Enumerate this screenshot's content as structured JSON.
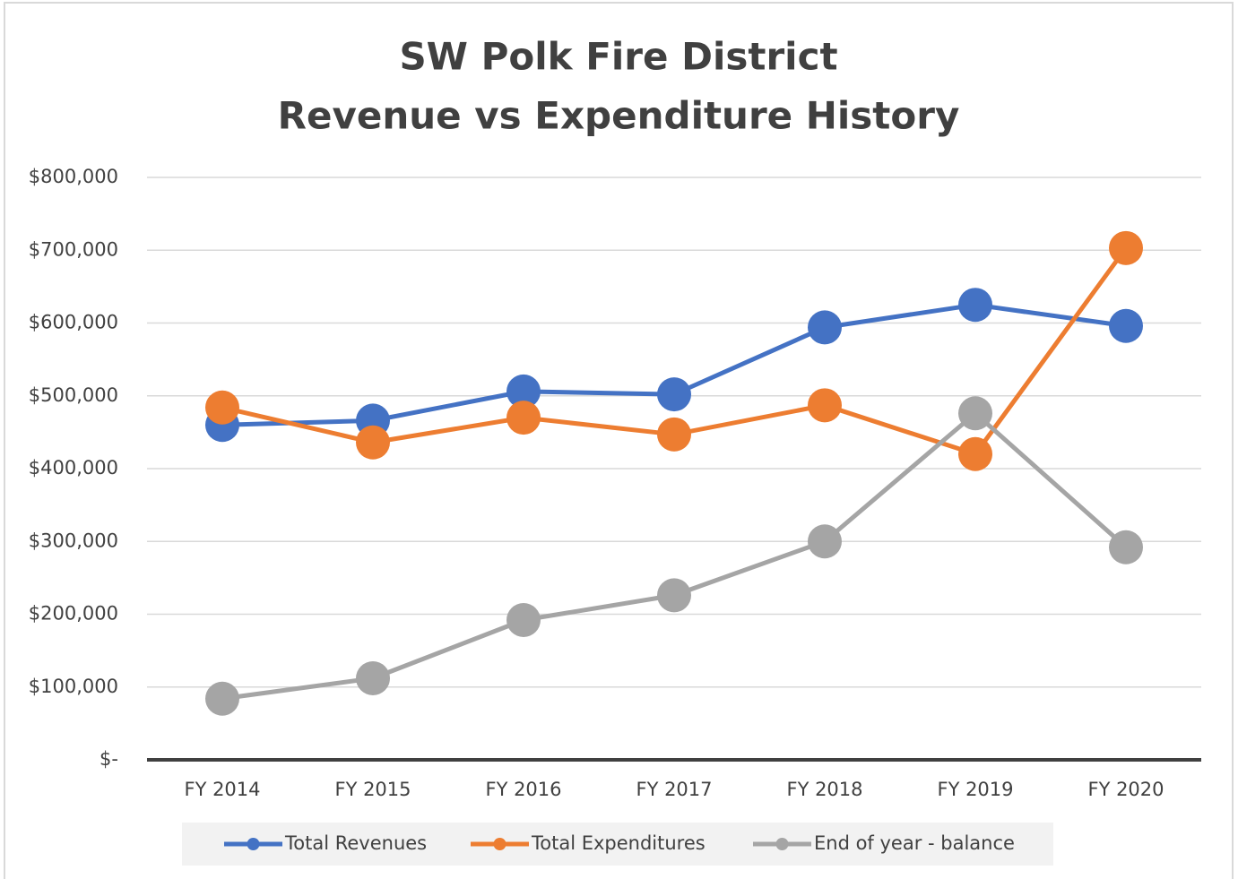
{
  "chart_data": {
    "type": "line",
    "title": "SW Polk Fire District",
    "subtitle": "Revenue vs Expenditure History",
    "categories": [
      "FY 2014",
      "FY 2015",
      "FY 2016",
      "FY 2017",
      "FY 2018",
      "FY 2019",
      "FY 2020"
    ],
    "series": [
      {
        "name": "Total Revenues",
        "color": "#4472c4",
        "values": [
          460000,
          466000,
          506000,
          502000,
          594000,
          625000,
          596000
        ]
      },
      {
        "name": "Total Expenditures",
        "color": "#ed7d31",
        "values": [
          484000,
          436000,
          470000,
          447000,
          487000,
          420000,
          703000
        ]
      },
      {
        "name": "End of year - balance",
        "color": "#a5a5a5",
        "values": [
          84000,
          112000,
          192000,
          226000,
          300000,
          476000,
          292000
        ]
      }
    ],
    "ylim": [
      0,
      800000
    ],
    "yticks": [
      {
        "value": 0,
        "label": "$-"
      },
      {
        "value": 100000,
        "label": "$100,000"
      },
      {
        "value": 200000,
        "label": "$200,000"
      },
      {
        "value": 300000,
        "label": "$300,000"
      },
      {
        "value": 400000,
        "label": "$400,000"
      },
      {
        "value": 500000,
        "label": "$500,000"
      },
      {
        "value": 600000,
        "label": "$600,000"
      },
      {
        "value": 700000,
        "label": "$700,000"
      },
      {
        "value": 800000,
        "label": "$800,000"
      }
    ],
    "grid": true,
    "legend": "bottom"
  }
}
